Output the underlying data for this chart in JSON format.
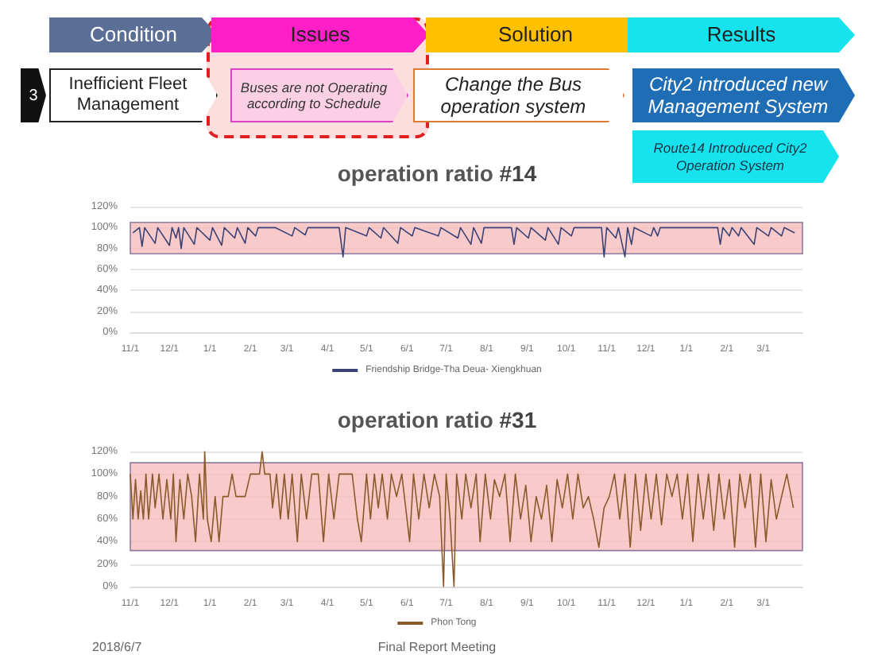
{
  "chart_data": [
    {
      "type": "other",
      "annotations": [
        "Condition",
        "Issues",
        "Solution",
        "Results",
        "3",
        "Inefficient Fleet Management",
        "Buses are not Operating according to  Schedule",
        "Change the Bus operation system",
        "City2 introduced new Management System",
        "Route14 Introduced City2 Operation System"
      ]
    },
    {
      "type": "line",
      "title": "operation ratio #14",
      "grid": "y",
      "legend": "bottom",
      "xlim": [
        "2016-11-01",
        "2018-03-31"
      ],
      "ylim": [
        0,
        120
      ],
      "xticks": [
        {
          "value": "2016-11-01",
          "label": "11/1"
        },
        {
          "value": "2016-12-01",
          "label": "12/1"
        },
        {
          "value": "2017-01-01",
          "label": "1/1"
        },
        {
          "value": "2017-02-01",
          "label": "2/1"
        },
        {
          "value": "2017-03-01",
          "label": "3/1"
        },
        {
          "value": "2017-04-01",
          "label": "4/1"
        },
        {
          "value": "2017-05-01",
          "label": "5/1"
        },
        {
          "value": "2017-06-01",
          "label": "6/1"
        },
        {
          "value": "2017-07-01",
          "label": "7/1"
        },
        {
          "value": "2017-08-01",
          "label": "8/1"
        },
        {
          "value": "2017-09-01",
          "label": "9/1"
        },
        {
          "value": "2017-10-01",
          "label": "10/1"
        },
        {
          "value": "2017-11-01",
          "label": "11/1"
        },
        {
          "value": "2017-12-01",
          "label": "12/1"
        },
        {
          "value": "2018-01-01",
          "label": "1/1"
        },
        {
          "value": "2018-02-01",
          "label": "2/1"
        },
        {
          "value": "2018-03-01",
          "label": "3/1"
        }
      ],
      "yticks": [
        {
          "value": 0,
          "label": "0%"
        },
        {
          "value": 20,
          "label": "20%"
        },
        {
          "value": 40,
          "label": "40%"
        },
        {
          "value": 60,
          "label": "60%"
        },
        {
          "value": 80,
          "label": "80%"
        },
        {
          "value": 100,
          "label": "100%"
        },
        {
          "value": 120,
          "label": "120%"
        }
      ],
      "bands": [
        {
          "axis": "y",
          "from": 75,
          "to": 105,
          "color": "#f6b8b8"
        }
      ],
      "series": [
        {
          "name": "Friendship Bridge-Tha Deua- Xiengkhuan",
          "color": "#3b4276",
          "x": [
            "2016-11-03",
            "2016-11-08",
            "2016-11-10",
            "2016-11-12",
            "2016-11-20",
            "2016-11-22",
            "2016-12-01",
            "2016-12-03",
            "2016-12-06",
            "2016-12-08",
            "2016-12-10",
            "2016-12-12",
            "2016-12-20",
            "2016-12-22",
            "2017-01-01",
            "2017-01-03",
            "2017-01-10",
            "2017-01-12",
            "2017-01-20",
            "2017-01-22",
            "2017-01-28",
            "2017-01-30",
            "2017-02-05",
            "2017-02-07",
            "2017-02-20",
            "2017-03-05",
            "2017-03-07",
            "2017-03-15",
            "2017-03-17",
            "2017-04-10",
            "2017-04-13",
            "2017-04-15",
            "2017-05-01",
            "2017-05-03",
            "2017-05-12",
            "2017-05-14",
            "2017-05-25",
            "2017-05-27",
            "2017-06-05",
            "2017-06-07",
            "2017-06-25",
            "2017-06-27",
            "2017-07-10",
            "2017-07-12",
            "2017-07-20",
            "2017-07-22",
            "2017-07-28",
            "2017-07-30",
            "2017-08-20",
            "2017-08-22",
            "2017-08-24",
            "2017-09-02",
            "2017-09-04",
            "2017-09-15",
            "2017-09-17",
            "2017-09-25",
            "2017-09-27",
            "2017-10-05",
            "2017-10-07",
            "2017-10-28",
            "2017-10-30",
            "2017-11-01",
            "2017-11-08",
            "2017-11-10",
            "2017-11-15",
            "2017-11-17",
            "2017-11-20",
            "2017-11-22",
            "2017-12-05",
            "2017-12-07",
            "2017-12-10",
            "2017-12-12",
            "2018-01-25",
            "2018-01-27",
            "2018-01-29",
            "2018-02-03",
            "2018-02-05",
            "2018-02-10",
            "2018-02-12",
            "2018-02-22",
            "2018-02-24",
            "2018-03-05",
            "2018-03-07",
            "2018-03-15",
            "2018-03-17",
            "2018-03-25"
          ],
          "values": [
            95,
            100,
            82,
            100,
            85,
            100,
            83,
            100,
            90,
            100,
            80,
            100,
            84,
            100,
            88,
            100,
            83,
            100,
            90,
            100,
            85,
            100,
            92,
            100,
            100,
            92,
            100,
            93,
            100,
            100,
            72,
            100,
            92,
            100,
            90,
            100,
            85,
            100,
            92,
            100,
            92,
            100,
            90,
            100,
            84,
            100,
            85,
            100,
            100,
            84,
            100,
            90,
            100,
            88,
            100,
            84,
            100,
            92,
            100,
            100,
            72,
            100,
            90,
            100,
            72,
            100,
            84,
            100,
            92,
            100,
            92,
            100,
            100,
            84,
            100,
            92,
            100,
            92,
            100,
            84,
            100,
            92,
            100,
            92,
            100,
            95
          ]
        }
      ]
    },
    {
      "type": "line",
      "title": "operation ratio #31",
      "grid": "y",
      "legend": "bottom",
      "xlim": [
        "2016-11-01",
        "2018-03-31"
      ],
      "ylim": [
        0,
        120
      ],
      "xticks": [
        {
          "value": "2016-11-01",
          "label": "11/1"
        },
        {
          "value": "2016-12-01",
          "label": "12/1"
        },
        {
          "value": "2017-01-01",
          "label": "1/1"
        },
        {
          "value": "2017-02-01",
          "label": "2/1"
        },
        {
          "value": "2017-03-01",
          "label": "3/1"
        },
        {
          "value": "2017-04-01",
          "label": "4/1"
        },
        {
          "value": "2017-05-01",
          "label": "5/1"
        },
        {
          "value": "2017-06-01",
          "label": "6/1"
        },
        {
          "value": "2017-07-01",
          "label": "7/1"
        },
        {
          "value": "2017-08-01",
          "label": "8/1"
        },
        {
          "value": "2017-09-01",
          "label": "9/1"
        },
        {
          "value": "2017-10-01",
          "label": "10/1"
        },
        {
          "value": "2017-11-01",
          "label": "11/1"
        },
        {
          "value": "2017-12-01",
          "label": "12/1"
        },
        {
          "value": "2018-01-01",
          "label": "1/1"
        },
        {
          "value": "2018-02-01",
          "label": "2/1"
        },
        {
          "value": "2018-03-01",
          "label": "3/1"
        }
      ],
      "yticks": [
        {
          "value": 0,
          "label": "0%"
        },
        {
          "value": 20,
          "label": "20%"
        },
        {
          "value": 40,
          "label": "40%"
        },
        {
          "value": 60,
          "label": "60%"
        },
        {
          "value": 80,
          "label": "80%"
        },
        {
          "value": 100,
          "label": "100%"
        },
        {
          "value": 120,
          "label": "120%"
        }
      ],
      "bands": [
        {
          "axis": "y",
          "from": 32,
          "to": 110,
          "color": "#f6b8b8"
        }
      ],
      "annotations": [
        "2018/6/7",
        "Final Report Meeting"
      ],
      "series": [
        {
          "name": "Phon Tong",
          "color": "#8b5a2b",
          "x": [
            "2016-11-01",
            "2016-11-03",
            "2016-11-05",
            "2016-11-07",
            "2016-11-09",
            "2016-11-11",
            "2016-11-13",
            "2016-11-15",
            "2016-11-18",
            "2016-11-20",
            "2016-11-23",
            "2016-11-26",
            "2016-11-29",
            "2016-12-02",
            "2016-12-04",
            "2016-12-06",
            "2016-12-09",
            "2016-12-12",
            "2016-12-15",
            "2016-12-18",
            "2016-12-21",
            "2016-12-24",
            "2016-12-27",
            "2016-12-28",
            "2016-12-30",
            "2017-01-02",
            "2017-01-05",
            "2017-01-08",
            "2017-01-11",
            "2017-01-15",
            "2017-01-18",
            "2017-01-21",
            "2017-01-28",
            "2017-02-01",
            "2017-02-08",
            "2017-02-10",
            "2017-02-12",
            "2017-02-16",
            "2017-02-18",
            "2017-02-21",
            "2017-02-24",
            "2017-02-27",
            "2017-03-02",
            "2017-03-05",
            "2017-03-09",
            "2017-03-12",
            "2017-03-16",
            "2017-03-20",
            "2017-03-25",
            "2017-03-29",
            "2017-04-02",
            "2017-04-06",
            "2017-04-10",
            "2017-04-20",
            "2017-04-24",
            "2017-04-27",
            "2017-05-01",
            "2017-05-04",
            "2017-05-07",
            "2017-05-10",
            "2017-05-13",
            "2017-05-17",
            "2017-05-20",
            "2017-05-24",
            "2017-05-28",
            "2017-06-03",
            "2017-06-06",
            "2017-06-10",
            "2017-06-14",
            "2017-06-18",
            "2017-06-22",
            "2017-06-26",
            "2017-06-29",
            "2017-07-01",
            "2017-07-04",
            "2017-07-07",
            "2017-07-09",
            "2017-07-13",
            "2017-07-16",
            "2017-07-20",
            "2017-07-24",
            "2017-07-27",
            "2017-07-31",
            "2017-08-04",
            "2017-08-07",
            "2017-08-11",
            "2017-08-15",
            "2017-08-19",
            "2017-08-23",
            "2017-08-27",
            "2017-08-31",
            "2017-09-04",
            "2017-09-08",
            "2017-09-12",
            "2017-09-16",
            "2017-09-20",
            "2017-09-24",
            "2017-09-28",
            "2017-10-02",
            "2017-10-06",
            "2017-10-10",
            "2017-10-14",
            "2017-10-18",
            "2017-10-22",
            "2017-10-26",
            "2017-10-30",
            "2017-11-03",
            "2017-11-07",
            "2017-11-11",
            "2017-11-15",
            "2017-11-19",
            "2017-11-23",
            "2017-11-27",
            "2017-12-01",
            "2017-12-05",
            "2017-12-09",
            "2017-12-13",
            "2017-12-17",
            "2017-12-21",
            "2017-12-25",
            "2017-12-29",
            "2018-01-02",
            "2018-01-06",
            "2018-01-10",
            "2018-01-14",
            "2018-01-18",
            "2018-01-22",
            "2018-01-26",
            "2018-01-30",
            "2018-02-03",
            "2018-02-07",
            "2018-02-11",
            "2018-02-15",
            "2018-02-19",
            "2018-02-23",
            "2018-02-27",
            "2018-03-03",
            "2018-03-07",
            "2018-03-11",
            "2018-03-15",
            "2018-03-19",
            "2018-03-24"
          ],
          "values": [
            100,
            60,
            95,
            60,
            85,
            60,
            100,
            60,
            100,
            70,
            100,
            60,
            95,
            60,
            100,
            40,
            95,
            60,
            100,
            80,
            40,
            100,
            60,
            120,
            60,
            40,
            80,
            40,
            80,
            80,
            100,
            80,
            80,
            100,
            100,
            120,
            100,
            100,
            70,
            100,
            60,
            100,
            60,
            100,
            40,
            100,
            60,
            100,
            100,
            40,
            100,
            60,
            100,
            100,
            60,
            40,
            100,
            60,
            100,
            70,
            100,
            60,
            100,
            80,
            100,
            40,
            100,
            60,
            100,
            70,
            100,
            80,
            0,
            100,
            60,
            0,
            100,
            60,
            100,
            70,
            100,
            40,
            100,
            60,
            95,
            80,
            100,
            40,
            100,
            60,
            90,
            40,
            80,
            60,
            90,
            40,
            95,
            70,
            100,
            60,
            100,
            70,
            80,
            60,
            35,
            70,
            80,
            100,
            60,
            100,
            35,
            100,
            50,
            100,
            60,
            100,
            55,
            100,
            80,
            100,
            60,
            100,
            40,
            100,
            60,
            100,
            50,
            100,
            60,
            95,
            35,
            100,
            70,
            100,
            35,
            100,
            40,
            95,
            60,
            80,
            100,
            70
          ]
        }
      ]
    }
  ]
}
